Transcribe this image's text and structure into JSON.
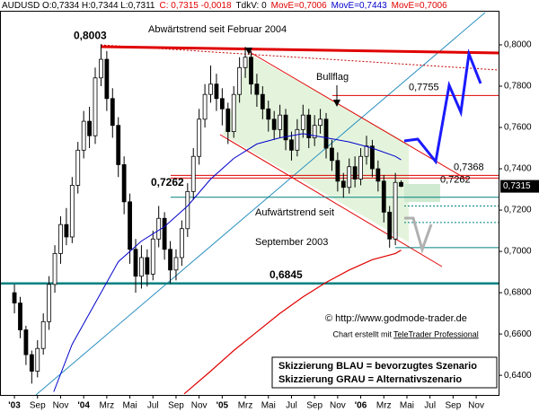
{
  "chart_data": {
    "type": "candlestick",
    "header": [
      {
        "text": "AUDUSD O:0,7334 H:0,7344 L:0,7311",
        "color": "#000000"
      },
      {
        "text": "C: 0,7315 -0,0018",
        "color": "#e00000"
      },
      {
        "text": "TdkV: 0",
        "color": "#000000"
      },
      {
        "text": "MovE=0,7006",
        "color": "#e00000"
      },
      {
        "text": "MovE=0,7443",
        "color": "#0000cc"
      },
      {
        "text": "MovE=0,7006",
        "color": "#e00000"
      }
    ],
    "xlim": [
      -1.25,
      41.94
    ],
    "ylim": [
      0.6305,
      0.8165
    ],
    "xticks": [
      {
        "value": 0,
        "label": "'03"
      },
      {
        "value": 2,
        "label": "Sep"
      },
      {
        "value": 4,
        "label": "Nov"
      },
      {
        "value": 6,
        "label": "'04"
      },
      {
        "value": 8,
        "label": "Mrz"
      },
      {
        "value": 10,
        "label": "Mai"
      },
      {
        "value": 12,
        "label": "Jul"
      },
      {
        "value": 14,
        "label": "Sep"
      },
      {
        "value": 16,
        "label": "Nov"
      },
      {
        "value": 18,
        "label": "'05"
      },
      {
        "value": 20,
        "label": "Mrz"
      },
      {
        "value": 22,
        "label": "Mai"
      },
      {
        "value": 24,
        "label": "Jul"
      },
      {
        "value": 26,
        "label": "Sep"
      },
      {
        "value": 28,
        "label": "Nov"
      },
      {
        "value": 30,
        "label": "'06"
      },
      {
        "value": 32,
        "label": "Mrz"
      },
      {
        "value": 34,
        "label": "Mai"
      },
      {
        "value": 36,
        "label": "Jul"
      },
      {
        "value": 38,
        "label": "Sep"
      },
      {
        "value": 40,
        "label": "Nov"
      }
    ],
    "yticks": [
      {
        "value": 0.64,
        "label": "0,6400"
      },
      {
        "value": 0.66,
        "label": "0,6600"
      },
      {
        "value": 0.68,
        "label": "0,6800"
      },
      {
        "value": 0.7,
        "label": "0,7000"
      },
      {
        "value": 0.72,
        "label": "0,7200"
      },
      {
        "value": 0.74,
        "label": "0,7400"
      },
      {
        "value": 0.76,
        "label": "0,7600"
      },
      {
        "value": 0.78,
        "label": "0,7800"
      },
      {
        "value": 0.8,
        "label": "0,8000"
      }
    ],
    "candles": {
      "x": [
        0,
        0.5,
        1,
        1.5,
        2,
        2.5,
        3,
        3.5,
        4,
        4.5,
        5,
        5.5,
        6,
        6.5,
        7,
        7.5,
        8,
        8.5,
        9,
        9.5,
        10,
        10.5,
        11,
        11.5,
        12,
        12.5,
        13,
        13.5,
        14,
        14.5,
        15,
        15.5,
        16,
        16.5,
        17,
        17.5,
        18,
        18.5,
        19,
        19.5,
        20,
        20.5,
        21,
        21.5,
        22,
        22.5,
        23,
        23.5,
        24,
        24.5,
        25,
        25.5,
        26,
        26.5,
        27,
        27.5,
        28,
        28.5,
        29,
        29.5,
        30,
        30.5,
        31,
        31.5,
        32,
        32.5,
        33,
        33.5
      ],
      "open": [
        0.68,
        0.675,
        0.662,
        0.65,
        0.642,
        0.653,
        0.666,
        0.684,
        0.699,
        0.713,
        0.707,
        0.732,
        0.749,
        0.763,
        0.756,
        0.784,
        0.793,
        0.774,
        0.761,
        0.742,
        0.724,
        0.701,
        0.688,
        0.697,
        0.689,
        0.706,
        0.716,
        0.701,
        0.691,
        0.697,
        0.711,
        0.729,
        0.746,
        0.764,
        0.776,
        0.781,
        0.774,
        0.769,
        0.758,
        0.776,
        0.789,
        0.794,
        0.781,
        0.776,
        0.769,
        0.764,
        0.759,
        0.766,
        0.754,
        0.749,
        0.759,
        0.766,
        0.755,
        0.761,
        0.764,
        0.75,
        0.744,
        0.734,
        0.731,
        0.741,
        0.735,
        0.746,
        0.751,
        0.74,
        0.734,
        0.719,
        0.706,
        0.7334
      ],
      "high": [
        0.684,
        0.678,
        0.664,
        0.652,
        0.657,
        0.67,
        0.688,
        0.703,
        0.717,
        0.721,
        0.736,
        0.753,
        0.768,
        0.77,
        0.789,
        0.8003,
        0.797,
        0.779,
        0.765,
        0.746,
        0.728,
        0.706,
        0.703,
        0.701,
        0.71,
        0.722,
        0.719,
        0.705,
        0.701,
        0.715,
        0.733,
        0.75,
        0.769,
        0.781,
        0.79,
        0.786,
        0.779,
        0.772,
        0.78,
        0.794,
        0.799,
        0.797,
        0.786,
        0.78,
        0.773,
        0.768,
        0.771,
        0.769,
        0.758,
        0.764,
        0.771,
        0.769,
        0.766,
        0.769,
        0.767,
        0.754,
        0.748,
        0.738,
        0.745,
        0.746,
        0.75,
        0.756,
        0.754,
        0.744,
        0.737,
        0.722,
        0.738,
        0.7344
      ],
      "low": [
        0.67,
        0.658,
        0.645,
        0.636,
        0.639,
        0.65,
        0.662,
        0.68,
        0.694,
        0.703,
        0.704,
        0.728,
        0.745,
        0.75,
        0.752,
        0.78,
        0.768,
        0.755,
        0.736,
        0.718,
        0.694,
        0.68,
        0.682,
        0.683,
        0.686,
        0.702,
        0.696,
        0.6845,
        0.686,
        0.693,
        0.707,
        0.725,
        0.742,
        0.76,
        0.772,
        0.768,
        0.761,
        0.752,
        0.755,
        0.772,
        0.784,
        0.776,
        0.77,
        0.764,
        0.758,
        0.754,
        0.755,
        0.749,
        0.744,
        0.746,
        0.755,
        0.75,
        0.751,
        0.757,
        0.745,
        0.739,
        0.729,
        0.726,
        0.728,
        0.731,
        0.732,
        0.742,
        0.736,
        0.729,
        0.714,
        0.7018,
        0.703,
        0.7311
      ],
      "close": [
        0.675,
        0.662,
        0.65,
        0.642,
        0.653,
        0.666,
        0.684,
        0.699,
        0.713,
        0.707,
        0.732,
        0.749,
        0.763,
        0.756,
        0.784,
        0.793,
        0.774,
        0.761,
        0.742,
        0.724,
        0.701,
        0.688,
        0.697,
        0.689,
        0.706,
        0.716,
        0.701,
        0.691,
        0.697,
        0.711,
        0.729,
        0.746,
        0.764,
        0.776,
        0.781,
        0.774,
        0.769,
        0.758,
        0.776,
        0.789,
        0.794,
        0.781,
        0.776,
        0.769,
        0.764,
        0.759,
        0.766,
        0.754,
        0.749,
        0.759,
        0.766,
        0.755,
        0.761,
        0.764,
        0.75,
        0.744,
        0.734,
        0.731,
        0.741,
        0.735,
        0.746,
        0.751,
        0.74,
        0.734,
        0.719,
        0.706,
        0.7334,
        0.7315
      ]
    },
    "series": [
      {
        "color": "#0000cc",
        "x": [
          3.4,
          5,
          7,
          9,
          11,
          13,
          15,
          17,
          19,
          21,
          23,
          25,
          27,
          29,
          31,
          33,
          33.5
        ],
        "values": [
          0.632,
          0.655,
          0.675,
          0.695,
          0.705,
          0.712,
          0.722,
          0.735,
          0.745,
          0.752,
          0.755,
          0.757,
          0.755,
          0.753,
          0.75,
          0.746,
          0.7443
        ]
      },
      {
        "color": "#e00000",
        "x": [
          14.7,
          17,
          19,
          21,
          23,
          25,
          27,
          29,
          31,
          33,
          33.5
        ],
        "values": [
          0.631,
          0.642,
          0.652,
          0.661,
          0.67,
          0.678,
          0.685,
          0.691,
          0.696,
          0.699,
          0.7006
        ]
      }
    ],
    "levels": [
      {
        "value": 0.7755,
        "color": "#e00000"
      },
      {
        "value": 0.7368,
        "color": "#e00000"
      },
      {
        "value": 0.7355,
        "color": "#e00000"
      },
      {
        "value": 0.7262,
        "color": "#008080"
      },
      {
        "value": 0.722,
        "color": "#008080"
      },
      {
        "value": 0.714,
        "color": "#008080"
      },
      {
        "value": 0.7018,
        "color": "#008080"
      },
      {
        "value": 0.6845,
        "color": "#008080"
      }
    ],
    "annotations": [
      {
        "label": "0,8003",
        "value": 0.8003
      },
      {
        "label": "0,7755",
        "value": 0.7755
      },
      {
        "label": "0,7368",
        "value": 0.7368
      },
      {
        "label": "0,7262",
        "value": 0.7262
      },
      {
        "label": "0,7262",
        "value": 0.7262
      },
      {
        "label": "0,6845",
        "value": 0.6845
      }
    ],
    "last_price": {
      "value": 0.7315,
      "label": "0,7315"
    },
    "texts": {
      "downtrend": "Abwärtstrend seit Februar 2004",
      "bullflag": "Bullflag",
      "uptrend": [
        "Aufwärtstrend seit",
        "September 2003"
      ],
      "copyright": "© http://www.godmode-trader.de",
      "credit": "Chart erstellt mit",
      "credit_link": "TeleTrader Professional",
      "legend": [
        "Skizzierung BLAU = bevorzugtes Szenario",
        "Skizzierung GRAU = Alternativszenario"
      ]
    }
  }
}
